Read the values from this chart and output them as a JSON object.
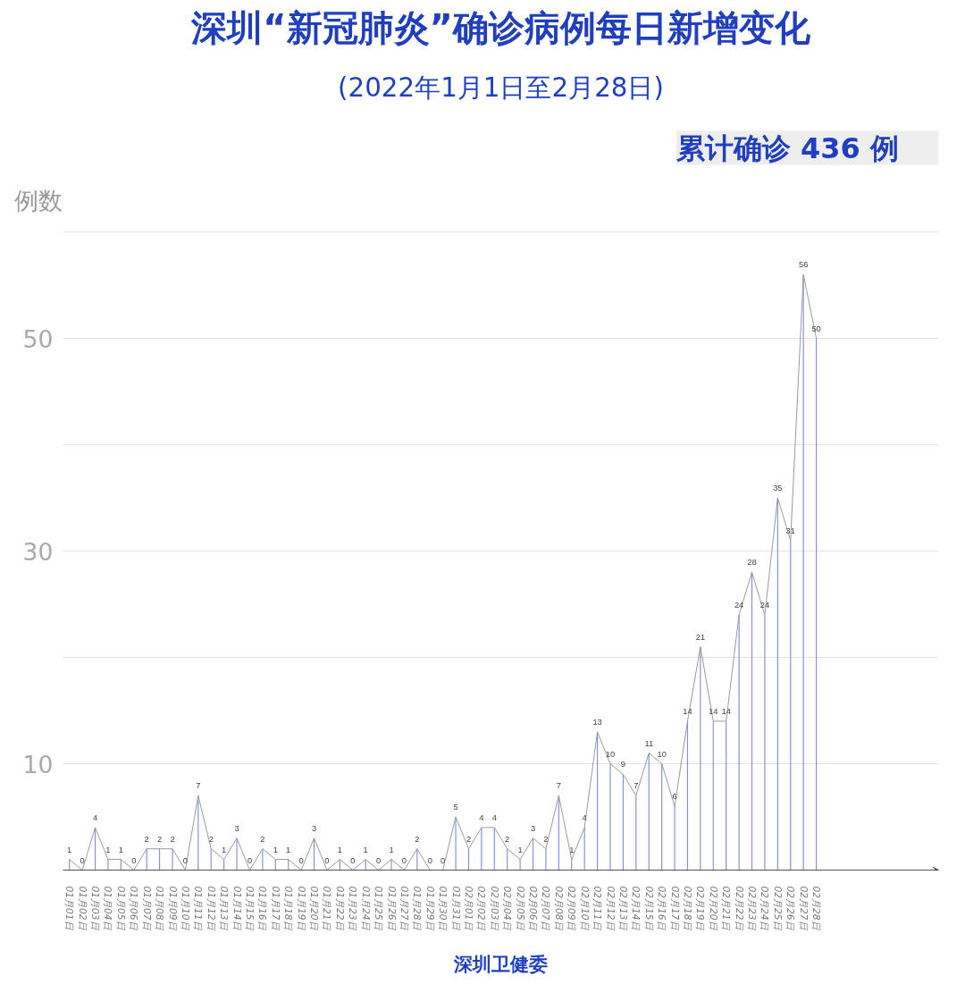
{
  "chart_data": {
    "type": "line",
    "title": "深圳“新冠肺炎”确诊病例每日新增变化",
    "subtitle": "(2022年1月1日至2月28日)",
    "ylabel": "例数",
    "annotations": [
      "累计确诊 436 例",
      "深圳卫健委"
    ],
    "categories": [
      "01月01日",
      "01月02日",
      "01月03日",
      "01月04日",
      "01月05日",
      "01月06日",
      "01月07日",
      "01月08日",
      "01月09日",
      "01月10日",
      "01月11日",
      "01月12日",
      "01月13日",
      "01月14日",
      "01月15日",
      "01月16日",
      "01月17日",
      "01月18日",
      "01月19日",
      "01月20日",
      "01月21日",
      "01月22日",
      "01月23日",
      "01月24日",
      "01月25日",
      "01月26日",
      "01月27日",
      "01月28日",
      "01月29日",
      "01月30日",
      "01月31日",
      "02月01日",
      "02月02日",
      "02月03日",
      "02月04日",
      "02月05日",
      "02月06日",
      "02月07日",
      "02月08日",
      "02月09日",
      "02月10日",
      "02月11日",
      "02月12日",
      "02月13日",
      "02月14日",
      "02月15日",
      "02月16日",
      "02月17日",
      "02月18日",
      "02月19日",
      "02月20日",
      "02月21日",
      "02月22日",
      "02月23日",
      "02月24日",
      "02月25日",
      "02月26日",
      "02月27日",
      "02月28日"
    ],
    "series": [
      {
        "type": "bar",
        "color": "#7d93d6",
        "values": [
          1,
          0,
          4,
          1,
          1,
          0,
          2,
          2,
          2,
          0,
          7,
          2,
          1,
          3,
          0,
          2,
          1,
          1,
          0,
          3,
          0,
          1,
          0,
          1,
          0,
          1,
          0,
          2,
          0,
          0,
          5,
          2,
          4,
          4,
          2,
          1,
          3,
          2,
          7,
          1,
          4,
          13,
          10,
          9,
          7,
          11,
          10,
          6,
          14,
          21,
          14,
          14,
          24,
          28,
          24,
          35,
          31,
          56,
          50
        ]
      },
      {
        "color": "#9a9a9a",
        "values": [
          1,
          0,
          4,
          1,
          1,
          0,
          2,
          2,
          2,
          0,
          7,
          2,
          1,
          3,
          0,
          2,
          1,
          1,
          0,
          3,
          0,
          1,
          0,
          1,
          0,
          1,
          0,
          2,
          0,
          0,
          5,
          2,
          4,
          4,
          2,
          1,
          3,
          2,
          7,
          1,
          4,
          13,
          10,
          9,
          7,
          11,
          10,
          6,
          14,
          21,
          14,
          14,
          24,
          28,
          24,
          35,
          31,
          56,
          50
        ],
        "value_labels": [
          "1",
          "0",
          "4",
          "1",
          "1",
          "0",
          "2",
          "2",
          "2",
          "0",
          "7",
          "2",
          "1",
          "3",
          "0",
          "2",
          "1",
          "1",
          "0",
          "3",
          "0",
          "1",
          "0",
          "1",
          "0",
          "1",
          "0",
          "2",
          "0",
          "0",
          "5",
          "2",
          "4",
          "4",
          "2",
          "1",
          "3",
          "2",
          "7",
          "1",
          "4",
          "13",
          "10",
          "9",
          "7",
          "11",
          "10",
          "6",
          "14",
          "21",
          "14",
          "14",
          "24",
          "28",
          "24",
          "35",
          "31",
          "56",
          "50"
        ]
      }
    ],
    "ylim": [
      0,
      60
    ],
    "yticks": [
      10,
      {
        "value": 20,
        "label": null
      },
      30,
      {
        "value": 40,
        "label": null
      },
      50,
      {
        "value": 60,
        "label": null
      }
    ],
    "grid": "y",
    "marker": "none",
    "line_style": "solid"
  }
}
